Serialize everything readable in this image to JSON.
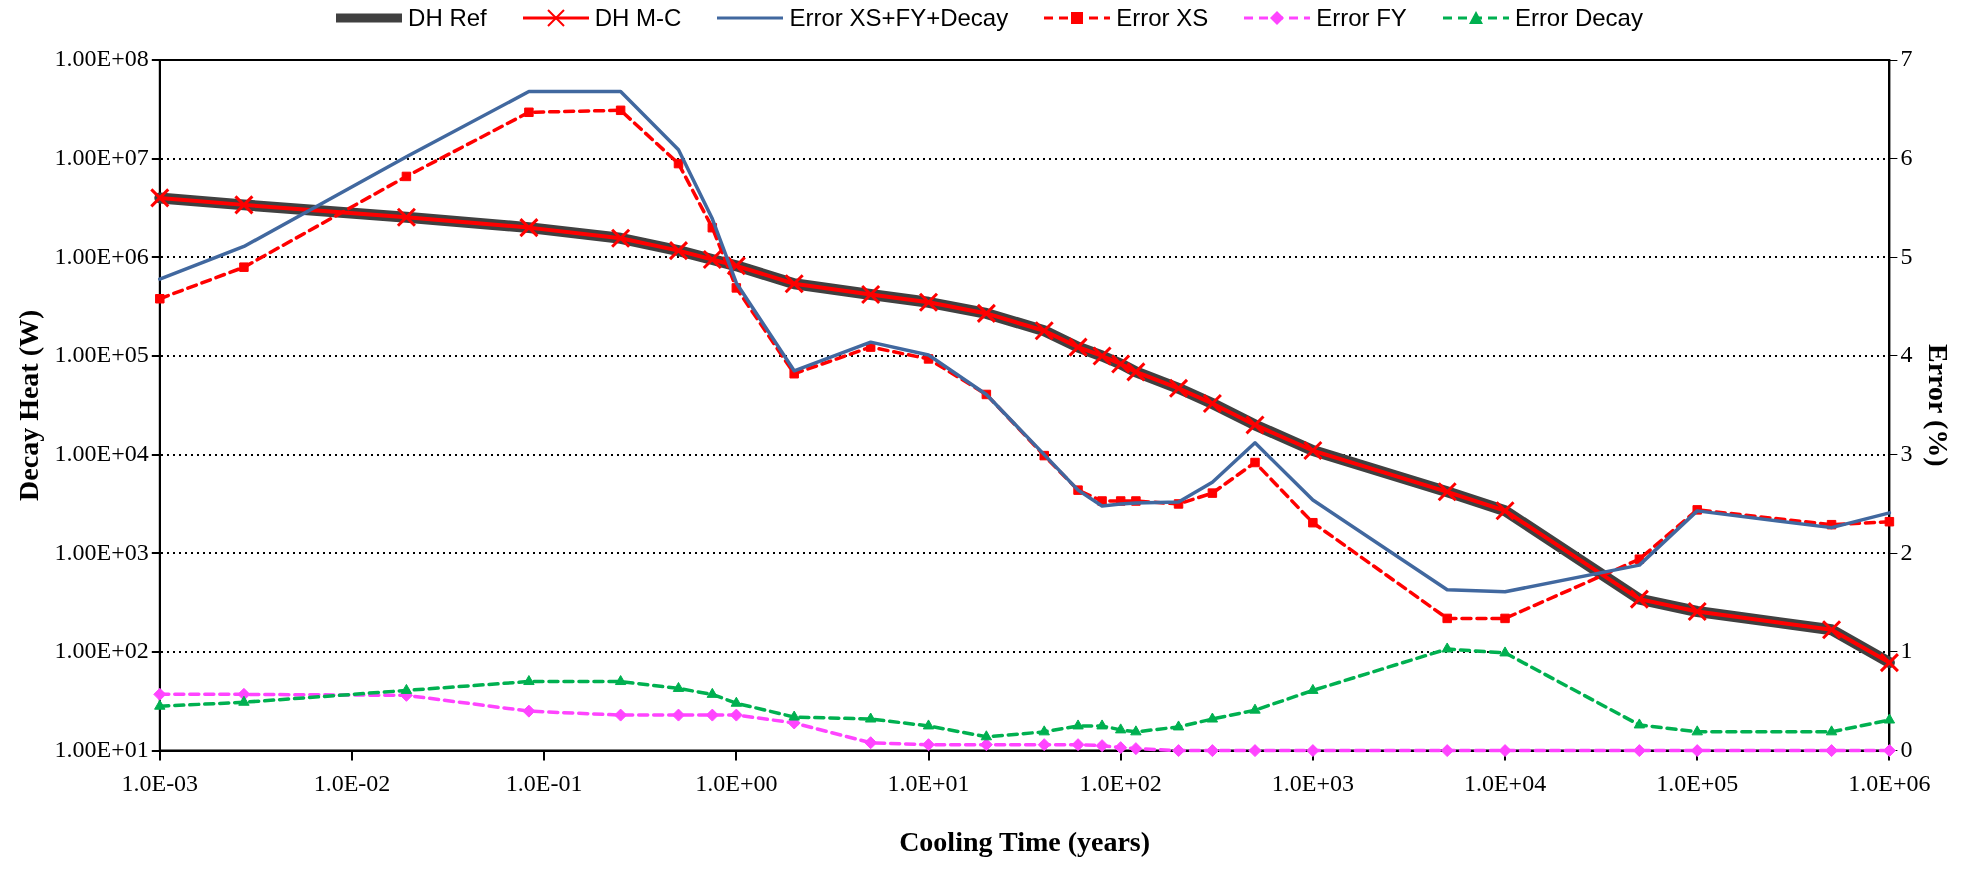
{
  "chart_data": {
    "type": "line",
    "xlabel": "Cooling Time (years)",
    "ylabel": "Decay Heat (W)",
    "y2label": "Error (%)",
    "log": "xy",
    "grid": "y",
    "legend": "top",
    "x": [
      0.001,
      0.00274,
      0.0192,
      0.0833,
      0.25,
      0.5,
      0.75,
      1,
      2,
      5,
      10,
      20,
      40,
      60,
      80,
      100,
      120,
      200,
      300,
      500,
      1000,
      5000,
      10000,
      50000,
      100000,
      500000,
      1000000
    ],
    "xlim": [
      0.001,
      1000000
    ],
    "xticks": [
      {
        "value": 0.001,
        "label": "1.0E-03"
      },
      {
        "value": 0.01,
        "label": "1.0E-02"
      },
      {
        "value": 0.1,
        "label": "1.0E-01"
      },
      {
        "value": 1,
        "label": "1.0E+00"
      },
      {
        "value": 10,
        "label": "1.0E+01"
      },
      {
        "value": 100,
        "label": "1.0E+02"
      },
      {
        "value": 1000,
        "label": "1.0E+03"
      },
      {
        "value": 10000,
        "label": "1.0E+04"
      },
      {
        "value": 100000,
        "label": "1.0E+05"
      },
      {
        "value": 1000000,
        "label": "1.0E+06"
      }
    ],
    "ylim": [
      10,
      100000000
    ],
    "yticks": [
      {
        "value": 10,
        "label": "1.00E+01"
      },
      {
        "value": 100,
        "label": "1.00E+02"
      },
      {
        "value": 1000,
        "label": "1.00E+03"
      },
      {
        "value": 10000,
        "label": "1.00E+04"
      },
      {
        "value": 100000,
        "label": "1.00E+05"
      },
      {
        "value": 1000000,
        "label": "1.00E+06"
      },
      {
        "value": 10000000,
        "label": "1.00E+07"
      },
      {
        "value": 100000000,
        "label": "1.00E+08"
      }
    ],
    "y2lim": [
      0,
      7
    ],
    "y2ticks": [
      0,
      1,
      2,
      3,
      4,
      5,
      6,
      7
    ],
    "series": [
      {
        "name": "DH Ref",
        "color": "#404040",
        "axis": "y",
        "marker": "none",
        "line_style": "solid",
        "values": [
          4000000,
          3400000,
          2550000,
          2000000,
          1560000,
          1170000,
          950000,
          820000,
          540000,
          420000,
          350000,
          270000,
          180000,
          123000,
          100000,
          83000,
          69000,
          47000,
          33000,
          20000,
          11000,
          4200,
          2700,
          343,
          257,
          168,
          78
        ]
      },
      {
        "name": "DH M-C",
        "color": "#ff0000",
        "axis": "y",
        "marker": "cross",
        "line_style": "solid",
        "values": [
          4000000,
          3400000,
          2550000,
          2000000,
          1560000,
          1170000,
          950000,
          820000,
          540000,
          420000,
          350000,
          270000,
          180000,
          123000,
          100000,
          83000,
          69000,
          47000,
          33000,
          20000,
          11000,
          4200,
          2700,
          343,
          257,
          168,
          78
        ]
      },
      {
        "name": "Error XS+FY+Decay",
        "color": "#41689f",
        "axis": "y2",
        "marker": "none",
        "line_style": "solid",
        "values": [
          4.78,
          5.11,
          6.02,
          6.68,
          6.68,
          6.09,
          5.39,
          4.74,
          3.85,
          4.14,
          4.01,
          3.61,
          3.0,
          2.64,
          2.48,
          2.5,
          2.51,
          2.52,
          2.72,
          3.12,
          2.54,
          1.63,
          1.61,
          1.88,
          2.43,
          2.26,
          2.41
        ]
      },
      {
        "name": "Error XS",
        "color": "#ff0000",
        "axis": "y2",
        "marker": "square",
        "line_style": "dashed",
        "values": [
          4.58,
          4.9,
          5.82,
          6.47,
          6.49,
          5.95,
          5.3,
          4.69,
          3.82,
          4.09,
          3.97,
          3.61,
          2.99,
          2.64,
          2.53,
          2.53,
          2.53,
          2.5,
          2.61,
          2.92,
          2.31,
          1.34,
          1.34,
          1.94,
          2.44,
          2.29,
          2.32
        ]
      },
      {
        "name": "Error FY",
        "color": "#ff44ff",
        "axis": "y2",
        "marker": "diamond",
        "line_style": "dashed",
        "values": [
          0.57,
          0.57,
          0.56,
          0.4,
          0.36,
          0.36,
          0.36,
          0.36,
          0.28,
          0.08,
          0.06,
          0.06,
          0.06,
          0.06,
          0.05,
          0.03,
          0.02,
          0,
          0,
          0,
          0,
          0,
          0,
          0,
          0,
          0,
          0
        ]
      },
      {
        "name": "Error Decay",
        "color": "#00b050",
        "axis": "y2",
        "marker": "triangle",
        "line_style": "dashed",
        "values": [
          0.45,
          0.49,
          0.61,
          0.7,
          0.7,
          0.63,
          0.57,
          0.48,
          0.34,
          0.32,
          0.25,
          0.14,
          0.19,
          0.25,
          0.25,
          0.21,
          0.19,
          0.24,
          0.32,
          0.41,
          0.61,
          1.03,
          0.99,
          0.26,
          0.19,
          0.19,
          0.31
        ]
      }
    ]
  }
}
